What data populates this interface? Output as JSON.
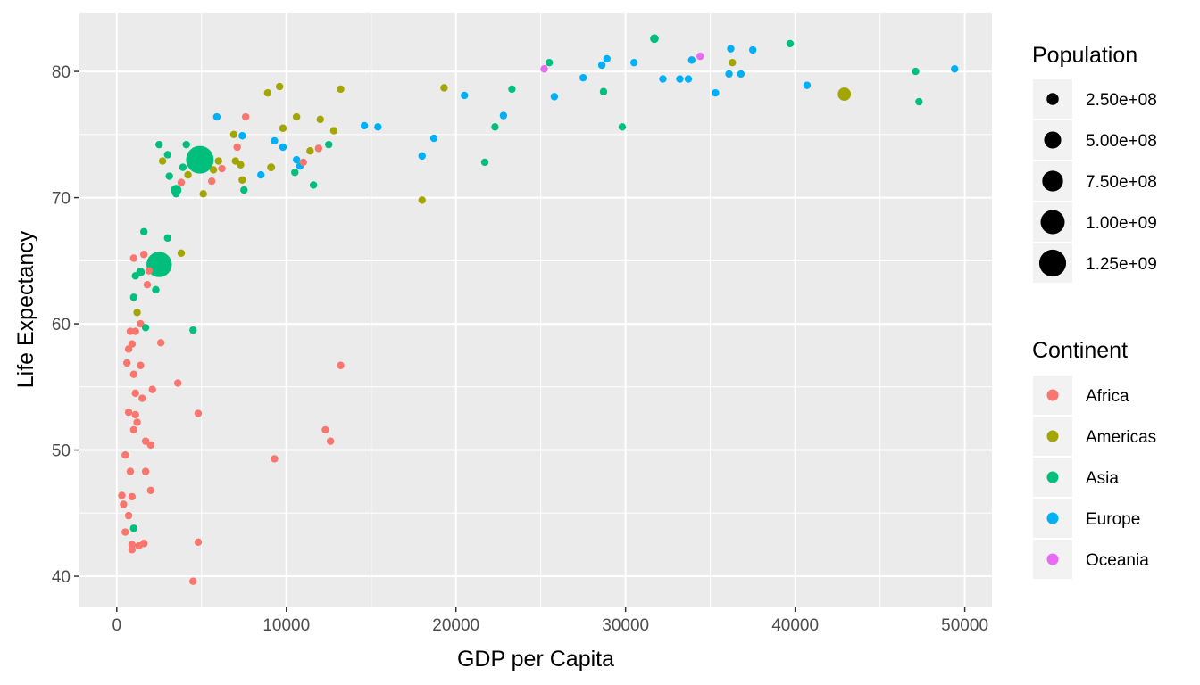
{
  "chart_data": {
    "type": "scatter",
    "title": "",
    "xlabel": "GDP per Capita",
    "ylabel": "Life Expectancy",
    "xlim": [
      -2200,
      51600
    ],
    "ylim": [
      37.6,
      84.6
    ],
    "x_ticks": [
      0,
      10000,
      20000,
      30000,
      40000,
      50000
    ],
    "x_tick_labels": [
      "0",
      "10000",
      "20000",
      "30000",
      "40000",
      "50000"
    ],
    "y_ticks": [
      40,
      50,
      60,
      70,
      80
    ],
    "y_tick_labels": [
      "40",
      "50",
      "60",
      "70",
      "80"
    ],
    "grid": true,
    "legend_position": "right",
    "size_legend": {
      "title": "Population",
      "entries": [
        {
          "label": "2.50e+08",
          "value": 250000000
        },
        {
          "label": "5.00e+08",
          "value": 500000000
        },
        {
          "label": "7.50e+08",
          "value": 750000000
        },
        {
          "label": "1.00e+09",
          "value": 1000000000
        },
        {
          "label": "1.25e+09",
          "value": 1250000000
        }
      ]
    },
    "color_legend": {
      "title": "Continent",
      "entries": [
        {
          "label": "Africa",
          "color": "#F8766D"
        },
        {
          "label": "Americas",
          "color": "#A3A500"
        },
        {
          "label": "Asia",
          "color": "#00BF7D"
        },
        {
          "label": "Europe",
          "color": "#00B0F6"
        },
        {
          "label": "Oceania",
          "color": "#E76BF3"
        }
      ]
    },
    "series": [
      {
        "name": "Africa",
        "color": "#F8766D",
        "points": [
          [
            13200,
            56.7,
            20000000.0
          ],
          [
            12600,
            50.7,
            20000000.0
          ],
          [
            12300,
            51.6,
            20000000.0
          ],
          [
            9300,
            49.3,
            50000000.0
          ],
          [
            4800,
            52.9,
            20000000.0
          ],
          [
            4800,
            42.7,
            30000000.0
          ],
          [
            4500,
            39.6,
            20000000.0
          ],
          [
            3600,
            55.3,
            30000000.0
          ],
          [
            2600,
            58.5,
            40000000.0
          ],
          [
            2000,
            46.8,
            70000000.0
          ],
          [
            2000,
            50.4,
            30000000.0
          ],
          [
            2100,
            54.8,
            20000000.0
          ],
          [
            1700,
            48.3,
            30000000.0
          ],
          [
            1700,
            50.7,
            30000000.0
          ],
          [
            1500,
            54.1,
            40000000.0
          ],
          [
            1400,
            56.7,
            30000000.0
          ],
          [
            1400,
            60.0,
            30000000.0
          ],
          [
            1600,
            42.6,
            20000000.0
          ],
          [
            1300,
            42.4,
            20000000.0
          ],
          [
            1200,
            52.2,
            30000000.0
          ],
          [
            1100,
            52.8,
            40000000.0
          ],
          [
            1000,
            51.6,
            40000000.0
          ],
          [
            1100,
            54.5,
            30000000.0
          ],
          [
            1000,
            56.0,
            30000000.0
          ],
          [
            900,
            58.4,
            30000000.0
          ],
          [
            800,
            59.4,
            30000000.0
          ],
          [
            700,
            58.0,
            20000000.0
          ],
          [
            600,
            56.9,
            30000000.0
          ],
          [
            700,
            53.0,
            40000000.0
          ],
          [
            500,
            49.6,
            20000000.0
          ],
          [
            800,
            48.3,
            40000000.0
          ],
          [
            900,
            46.3,
            30000000.0
          ],
          [
            300,
            46.4,
            50000000.0
          ],
          [
            400,
            45.7,
            20000000.0
          ],
          [
            700,
            44.8,
            20000000.0
          ],
          [
            500,
            43.5,
            30000000.0
          ],
          [
            900,
            42.5,
            30000000.0
          ],
          [
            900,
            42.1,
            30000000.0
          ],
          [
            1000,
            65.2,
            20000000.0
          ],
          [
            1600,
            65.5,
            20000000.0
          ],
          [
            1900,
            64.2,
            20000000.0
          ],
          [
            1800,
            63.1,
            30000000.0
          ],
          [
            1100,
            59.4,
            30000000.0
          ],
          [
            5600,
            71.3,
            70000000.0
          ],
          [
            6200,
            72.3,
            40000000.0
          ],
          [
            7100,
            74.0,
            30000000.0
          ],
          [
            7600,
            76.4,
            20000000.0
          ],
          [
            3800,
            71.2,
            40000000.0
          ],
          [
            11900,
            73.9,
            30000000.0
          ],
          [
            11000,
            72.8,
            20000000.0
          ]
        ]
      },
      {
        "name": "Americas",
        "color": "#A3A500",
        "points": [
          [
            42900,
            78.2,
            300000000.0
          ],
          [
            36300,
            80.7,
            30000000.0
          ],
          [
            18000,
            69.8,
            20000000.0
          ],
          [
            19300,
            78.7,
            20000000.0
          ],
          [
            13200,
            78.6,
            30000000.0
          ],
          [
            12800,
            75.3,
            40000000.0
          ],
          [
            12000,
            76.2,
            60000000.0
          ],
          [
            11400,
            73.7,
            30000000.0
          ],
          [
            10600,
            76.4,
            20000000.0
          ],
          [
            9800,
            75.5,
            20000000.0
          ],
          [
            9600,
            78.8,
            20000000.0
          ],
          [
            9100,
            72.4,
            110000000.0
          ],
          [
            8900,
            78.3,
            30000000.0
          ],
          [
            7400,
            71.4,
            30000000.0
          ],
          [
            7300,
            72.6,
            20000000.0
          ],
          [
            7000,
            72.9,
            40000000.0
          ],
          [
            6900,
            75.0,
            30000000.0
          ],
          [
            6000,
            72.9,
            30000000.0
          ],
          [
            5700,
            72.2,
            40000000.0
          ],
          [
            5100,
            70.3,
            30000000.0
          ],
          [
            4200,
            71.8,
            30000000.0
          ],
          [
            3800,
            65.6,
            30000000.0
          ],
          [
            2700,
            72.9,
            20000000.0
          ],
          [
            1200,
            60.9,
            30000000.0
          ]
        ]
      },
      {
        "name": "Asia",
        "color": "#00BF7D",
        "points": [
          [
            47300,
            77.6,
            20000000.0
          ],
          [
            47100,
            80.0,
            20000000.0
          ],
          [
            39700,
            82.2,
            20000000.0
          ],
          [
            31700,
            82.6,
            130000000.0
          ],
          [
            29800,
            75.6,
            20000000.0
          ],
          [
            28700,
            78.4,
            40000000.0
          ],
          [
            25500,
            80.7,
            20000000.0
          ],
          [
            23300,
            78.6,
            50000000.0
          ],
          [
            22300,
            75.6,
            20000000.0
          ],
          [
            21700,
            72.8,
            50000000.0
          ],
          [
            12500,
            74.2,
            50000000.0
          ],
          [
            11600,
            71.0,
            70000000.0
          ],
          [
            10500,
            72.0,
            30000000.0
          ],
          [
            7500,
            70.6,
            80000000.0
          ],
          [
            4900,
            73.0,
            1320000000.0
          ],
          [
            4500,
            59.5,
            50000000.0
          ],
          [
            4100,
            74.2,
            40000000.0
          ],
          [
            3900,
            72.4,
            40000000.0
          ],
          [
            3500,
            70.3,
            40000000.0
          ],
          [
            3500,
            70.6,
            190000000.0
          ],
          [
            3100,
            71.7,
            90000000.0
          ],
          [
            3000,
            73.4,
            30000000.0
          ],
          [
            3000,
            66.8,
            30000000.0
          ],
          [
            2500,
            74.2,
            80000000.0
          ],
          [
            2500,
            64.7,
            1110000000.0
          ],
          [
            2300,
            62.7,
            50000000.0
          ],
          [
            1600,
            67.3,
            50000000.0
          ],
          [
            1700,
            59.7,
            30000000.0
          ],
          [
            1400,
            64.1,
            130000000.0
          ],
          [
            1100,
            63.8,
            50000000.0
          ],
          [
            1000,
            62.1,
            70000000.0
          ],
          [
            1000,
            43.8,
            40000000.0
          ]
        ]
      },
      {
        "name": "Europe",
        "color": "#00B0F6",
        "points": [
          [
            49400,
            80.2,
            20000000.0
          ],
          [
            40700,
            78.9,
            20000000.0
          ],
          [
            37500,
            81.7,
            20000000.0
          ],
          [
            36800,
            79.8,
            40000000.0
          ],
          [
            36200,
            81.8,
            20000000.0
          ],
          [
            36100,
            79.8,
            30000000.0
          ],
          [
            35300,
            78.3,
            20000000.0
          ],
          [
            33900,
            80.9,
            30000000.0
          ],
          [
            33700,
            79.4,
            30000000.0
          ],
          [
            33200,
            79.4,
            80000000.0
          ],
          [
            32200,
            79.4,
            80000000.0
          ],
          [
            30500,
            80.7,
            60000000.0
          ],
          [
            28900,
            81.0,
            60000000.0
          ],
          [
            28600,
            80.5,
            60000000.0
          ],
          [
            27500,
            79.5,
            40000000.0
          ],
          [
            25800,
            78.0,
            20000000.0
          ],
          [
            22800,
            76.5,
            30000000.0
          ],
          [
            20500,
            78.1,
            30000000.0
          ],
          [
            18700,
            74.7,
            20000000.0
          ],
          [
            18000,
            73.3,
            30000000.0
          ],
          [
            15400,
            75.6,
            40000000.0
          ],
          [
            14600,
            75.7,
            20000000.0
          ],
          [
            10800,
            72.5,
            40000000.0
          ],
          [
            10600,
            73.0,
            20000000.0
          ],
          [
            9800,
            74.0,
            30000000.0
          ],
          [
            9300,
            74.5,
            20000000.0
          ],
          [
            8500,
            71.8,
            70000000.0
          ],
          [
            7400,
            74.9,
            20000000.0
          ],
          [
            5900,
            76.4,
            20000000.0
          ]
        ]
      },
      {
        "name": "Oceania",
        "color": "#E76BF3",
        "points": [
          [
            34400,
            81.2,
            30000000.0
          ],
          [
            25200,
            80.2,
            20000000.0
          ]
        ]
      }
    ]
  }
}
